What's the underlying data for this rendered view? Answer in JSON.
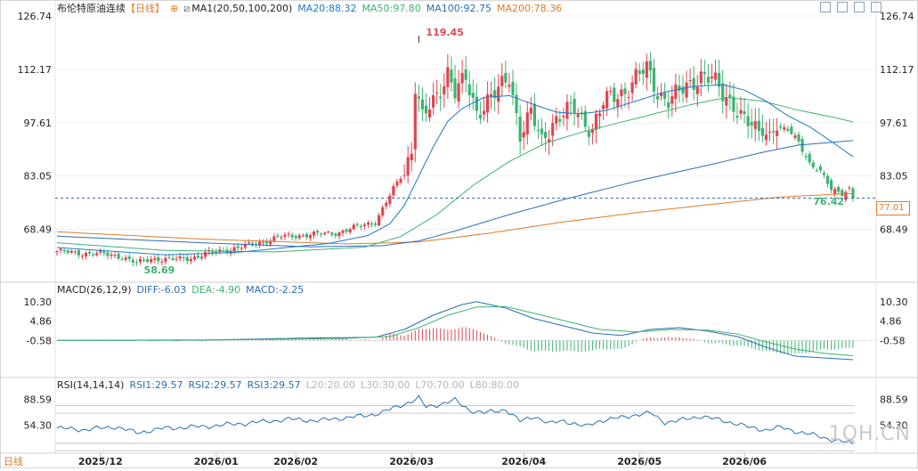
{
  "header": {
    "symbol": "布伦特原油连续",
    "period": "【日线】",
    "ma_label": "MA1(20,50,100,200)",
    "ma20": "MA20:88.32",
    "ma50": "MA50:97.80",
    "ma100": "MA100:92.75",
    "ma200": "MA200:78.36"
  },
  "macd_header": {
    "label": "MACD(26,12,9)",
    "diff": "DIFF:-6.03",
    "dea": "DEA:-4.90",
    "macd": "MACD:-2.25"
  },
  "rsi_header": {
    "label": "RSI(14,14,14)",
    "rsi1": "RSI1:29.57",
    "rsi2": "RSI2:29.57",
    "rsi3": "RSI3:29.57",
    "l20": "L20:20.00",
    "l30": "L30:30.00",
    "l70": "L70:70.00",
    "l80": "L80:80.00"
  },
  "footer_label": "日线",
  "watermark": "1QH.CN",
  "current_price": "77.01",
  "colors": {
    "up": "#e0454f",
    "down": "#3cb371",
    "ma20": "#1f78c8",
    "ma50": "#3cb371",
    "ma100": "#2a6db5",
    "ma200": "#e07b2a",
    "diff": "#2a6db5",
    "dea": "#3cb371",
    "rsi": "#2a6db5"
  },
  "chart_data": {
    "type": "candlestick",
    "price_axis": {
      "ticks": [
        "126.74",
        "112.17",
        "97.61",
        "83.05",
        "68.49"
      ],
      "ylim": [
        54.5,
        126.74
      ]
    },
    "macd_axis": {
      "ticks": [
        "10.30",
        "4.86",
        "-0.58"
      ]
    },
    "rsi_axis": {
      "ticks": [
        "88.59",
        "54.30"
      ]
    },
    "x_labels": [
      "2025/12",
      "2026/01",
      "2026/02",
      "2026/03",
      "2026/04",
      "2026/05",
      "2026/06"
    ],
    "annotations": {
      "high": "119.45",
      "low": "58.69",
      "last_low": "76.42"
    },
    "close_key": [
      [
        0,
        62.5
      ],
      [
        5,
        62.0
      ],
      [
        12,
        61.8
      ],
      [
        18,
        61.0
      ],
      [
        22,
        59.2
      ],
      [
        26,
        60.4
      ],
      [
        32,
        60.2
      ],
      [
        38,
        60.8
      ],
      [
        42,
        62.0
      ],
      [
        48,
        63.0
      ],
      [
        55,
        64.6
      ],
      [
        62,
        66.5
      ],
      [
        70,
        67.0
      ],
      [
        78,
        67.6
      ],
      [
        85,
        69.8
      ],
      [
        88,
        70.5
      ],
      [
        90,
        74.0
      ],
      [
        93,
        79.5
      ],
      [
        96,
        84.5
      ],
      [
        98,
        90.5
      ],
      [
        99,
        108.0
      ],
      [
        101,
        98.5
      ],
      [
        104,
        103.0
      ],
      [
        106,
        107.0
      ],
      [
        108,
        112.0
      ],
      [
        110,
        106.0
      ],
      [
        113,
        109.0
      ],
      [
        116,
        100.5
      ],
      [
        119,
        104.0
      ],
      [
        122,
        106.0
      ],
      [
        125,
        110.0
      ],
      [
        128,
        95.0
      ],
      [
        131,
        100.0
      ],
      [
        134,
        92.0
      ],
      [
        137,
        98.0
      ],
      [
        140,
        100.5
      ],
      [
        143,
        101.0
      ],
      [
        146,
        97.5
      ],
      [
        148,
        96.5
      ],
      [
        151,
        103.0
      ],
      [
        154,
        104.5
      ],
      [
        157,
        106.5
      ],
      [
        160,
        110.0
      ],
      [
        163,
        112.0
      ],
      [
        166,
        106.0
      ],
      [
        169,
        104.0
      ],
      [
        172,
        105.5
      ],
      [
        175,
        108.0
      ],
      [
        178,
        111.0
      ],
      [
        181,
        109.5
      ],
      [
        184,
        105.0
      ],
      [
        187,
        103.0
      ],
      [
        190,
        98.5
      ],
      [
        193,
        95.0
      ],
      [
        196,
        94.5
      ],
      [
        199,
        96.0
      ],
      [
        202,
        95.5
      ],
      [
        205,
        92.5
      ],
      [
        208,
        86.5
      ],
      [
        211,
        84.0
      ],
      [
        214,
        79.5
      ],
      [
        217,
        78.5
      ],
      [
        219,
        79.5
      ],
      [
        220,
        77.0
      ]
    ],
    "ma20_key": [
      [
        0,
        63.5
      ],
      [
        30,
        61.5
      ],
      [
        50,
        62.2
      ],
      [
        75,
        64.6
      ],
      [
        86,
        66.8
      ],
      [
        92,
        70.0
      ],
      [
        96,
        75.0
      ],
      [
        100,
        83.0
      ],
      [
        104,
        91.0
      ],
      [
        108,
        98.0
      ],
      [
        112,
        101.5
      ],
      [
        118,
        104.5
      ],
      [
        125,
        105.0
      ],
      [
        132,
        102.5
      ],
      [
        138,
        100.5
      ],
      [
        145,
        100.0
      ],
      [
        152,
        101.0
      ],
      [
        160,
        103.5
      ],
      [
        168,
        106.0
      ],
      [
        176,
        107.5
      ],
      [
        184,
        108.0
      ],
      [
        190,
        106.5
      ],
      [
        196,
        103.5
      ],
      [
        202,
        99.5
      ],
      [
        208,
        96.5
      ],
      [
        214,
        92.5
      ],
      [
        220,
        88.3
      ]
    ],
    "ma50_key": [
      [
        0,
        64.8
      ],
      [
        30,
        62.7
      ],
      [
        60,
        62.3
      ],
      [
        85,
        63.6
      ],
      [
        95,
        66.5
      ],
      [
        105,
        72.5
      ],
      [
        115,
        80.5
      ],
      [
        125,
        87.0
      ],
      [
        135,
        92.0
      ],
      [
        145,
        95.0
      ],
      [
        155,
        97.5
      ],
      [
        165,
        100.0
      ],
      [
        175,
        102.5
      ],
      [
        185,
        104.5
      ],
      [
        195,
        103.5
      ],
      [
        205,
        101.0
      ],
      [
        215,
        99.0
      ],
      [
        220,
        97.8
      ]
    ],
    "ma100_key": [
      [
        0,
        66.6
      ],
      [
        40,
        64.8
      ],
      [
        70,
        63.7
      ],
      [
        90,
        64.0
      ],
      [
        100,
        65.3
      ],
      [
        110,
        68.0
      ],
      [
        125,
        72.5
      ],
      [
        140,
        76.6
      ],
      [
        160,
        81.6
      ],
      [
        180,
        86.0
      ],
      [
        195,
        89.5
      ],
      [
        205,
        91.5
      ],
      [
        220,
        92.7
      ]
    ],
    "ma200_key": [
      [
        0,
        67.8
      ],
      [
        40,
        65.8
      ],
      [
        80,
        64.5
      ],
      [
        100,
        65.0
      ],
      [
        120,
        67.5
      ],
      [
        140,
        70.5
      ],
      [
        160,
        73.0
      ],
      [
        180,
        75.2
      ],
      [
        200,
        77.3
      ],
      [
        220,
        78.3
      ]
    ],
    "diff_key": [
      [
        0,
        -0.58
      ],
      [
        40,
        -0.5
      ],
      [
        70,
        0.1
      ],
      [
        88,
        0.3
      ],
      [
        96,
        2.5
      ],
      [
        104,
        6.5
      ],
      [
        112,
        9.5
      ],
      [
        116,
        10.3
      ],
      [
        124,
        8.5
      ],
      [
        132,
        5.5
      ],
      [
        140,
        3.5
      ],
      [
        148,
        1.5
      ],
      [
        156,
        0.8
      ],
      [
        164,
        2.5
      ],
      [
        172,
        3.0
      ],
      [
        180,
        2.0
      ],
      [
        188,
        0.5
      ],
      [
        196,
        -2.5
      ],
      [
        204,
        -5.0
      ],
      [
        212,
        -5.5
      ],
      [
        220,
        -6.0
      ]
    ],
    "dea_key": [
      [
        0,
        -0.58
      ],
      [
        50,
        -0.4
      ],
      [
        80,
        0.0
      ],
      [
        92,
        0.5
      ],
      [
        100,
        3.0
      ],
      [
        108,
        6.5
      ],
      [
        116,
        8.8
      ],
      [
        124,
        8.9
      ],
      [
        132,
        7.0
      ],
      [
        140,
        5.0
      ],
      [
        150,
        2.5
      ],
      [
        160,
        1.8
      ],
      [
        170,
        2.5
      ],
      [
        180,
        2.3
      ],
      [
        188,
        1.2
      ],
      [
        196,
        -1.0
      ],
      [
        204,
        -3.0
      ],
      [
        212,
        -4.2
      ],
      [
        220,
        -4.9
      ]
    ],
    "rsi_key": [
      [
        0,
        50
      ],
      [
        8,
        48
      ],
      [
        16,
        52
      ],
      [
        22,
        44
      ],
      [
        30,
        50
      ],
      [
        40,
        52
      ],
      [
        48,
        55
      ],
      [
        56,
        58
      ],
      [
        64,
        62
      ],
      [
        72,
        60
      ],
      [
        80,
        64
      ],
      [
        86,
        67
      ],
      [
        90,
        71
      ],
      [
        96,
        82
      ],
      [
        100,
        90
      ],
      [
        102,
        78
      ],
      [
        106,
        82
      ],
      [
        110,
        87
      ],
      [
        114,
        74
      ],
      [
        118,
        70
      ],
      [
        124,
        75
      ],
      [
        128,
        59
      ],
      [
        132,
        66
      ],
      [
        136,
        56
      ],
      [
        140,
        60
      ],
      [
        146,
        52
      ],
      [
        150,
        60
      ],
      [
        156,
        64
      ],
      [
        160,
        68
      ],
      [
        164,
        70
      ],
      [
        168,
        58
      ],
      [
        172,
        60
      ],
      [
        178,
        66
      ],
      [
        184,
        60
      ],
      [
        188,
        56
      ],
      [
        192,
        50
      ],
      [
        196,
        48
      ],
      [
        200,
        51
      ],
      [
        205,
        45
      ],
      [
        210,
        40
      ],
      [
        215,
        34
      ],
      [
        220,
        29.6
      ]
    ],
    "series": [
      {
        "name": "MA20",
        "value": 88.32
      },
      {
        "name": "MA50",
        "value": 97.8
      },
      {
        "name": "MA100",
        "value": 92.75
      },
      {
        "name": "MA200",
        "value": 78.36
      },
      {
        "name": "DIFF",
        "value": -6.03
      },
      {
        "name": "DEA",
        "value": -4.9
      },
      {
        "name": "MACD",
        "value": -2.25
      },
      {
        "name": "RSI1",
        "value": 29.57
      }
    ]
  }
}
